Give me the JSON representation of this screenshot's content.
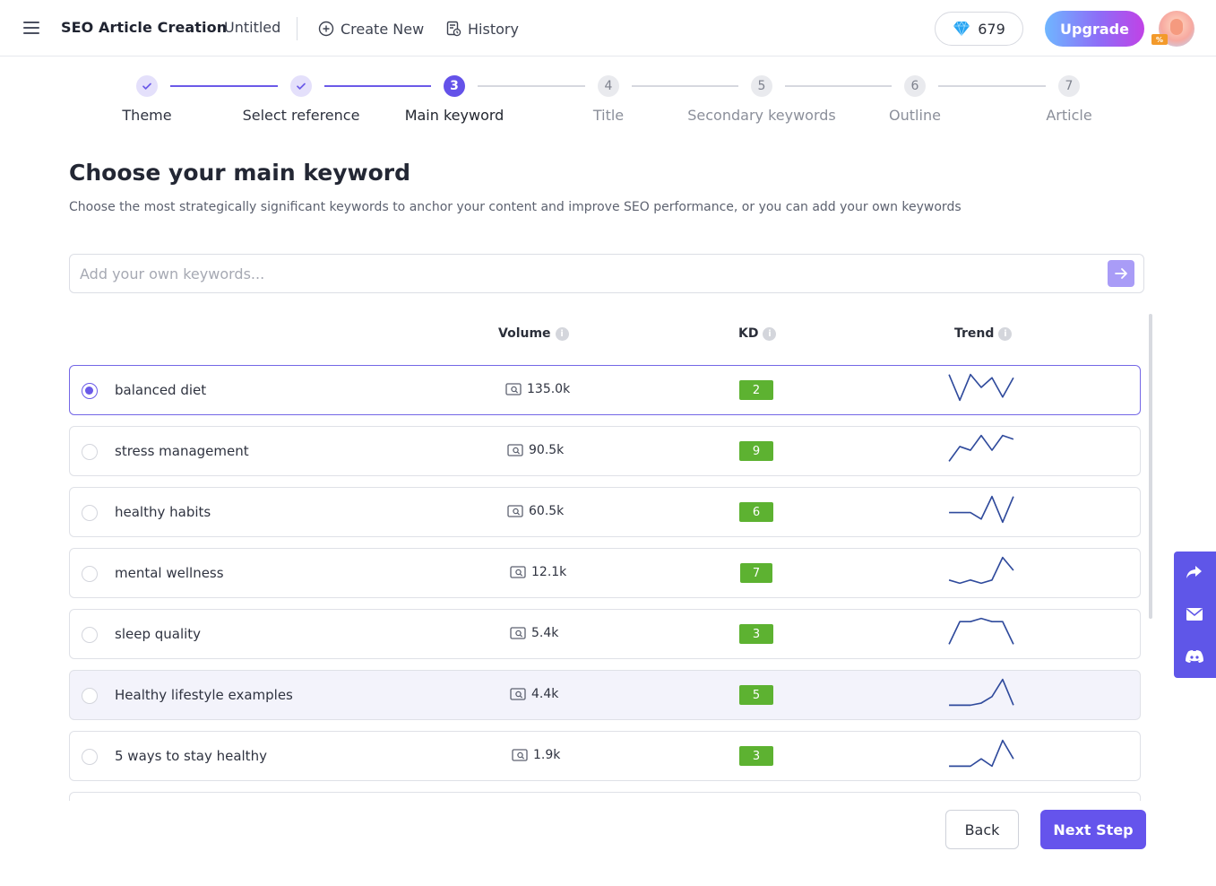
{
  "header": {
    "app_title": "SEO Article Creation",
    "doc_name": "Untitled",
    "create_new_label": "Create New",
    "history_label": "History",
    "credits": "679",
    "upgrade_label": "Upgrade",
    "avatar_badge": "%"
  },
  "stepper": {
    "steps": [
      {
        "number": "1",
        "label": "Theme",
        "state": "done"
      },
      {
        "number": "2",
        "label": "Select reference",
        "state": "done"
      },
      {
        "number": "3",
        "label": "Main keyword",
        "state": "active"
      },
      {
        "number": "4",
        "label": "Title",
        "state": "todo"
      },
      {
        "number": "5",
        "label": "Secondary keywords",
        "state": "todo"
      },
      {
        "number": "6",
        "label": "Outline",
        "state": "todo"
      },
      {
        "number": "7",
        "label": "Article",
        "state": "todo"
      }
    ]
  },
  "main": {
    "title": "Choose your main keyword",
    "subtitle": "Choose the most strategically significant keywords to anchor your content and improve SEO performance, or you can add your own keywords",
    "input_placeholder": "Add your own keywords...",
    "columns": {
      "volume": "Volume",
      "kd": "KD",
      "trend": "Trend",
      "info": "i"
    }
  },
  "keywords": [
    {
      "keyword": "balanced diet",
      "volume": "135.0k",
      "kd": "2",
      "selected": true,
      "trend": [
        10,
        2,
        10,
        6,
        9,
        3,
        9
      ]
    },
    {
      "keyword": "stress management",
      "volume": "90.5k",
      "kd": "9",
      "selected": false,
      "trend": [
        2,
        6,
        5,
        9,
        5,
        9,
        8
      ]
    },
    {
      "keyword": "healthy habits",
      "volume": "60.5k",
      "kd": "6",
      "selected": false,
      "trend": [
        5,
        5,
        5,
        3,
        10,
        2,
        10
      ]
    },
    {
      "keyword": "mental wellness",
      "volume": "12.1k",
      "kd": "7",
      "selected": false,
      "trend": [
        3,
        2,
        3,
        2,
        3,
        10,
        6
      ]
    },
    {
      "keyword": "sleep quality",
      "volume": "5.4k",
      "kd": "3",
      "selected": false,
      "trend": [
        1,
        8,
        8,
        9,
        8,
        8,
        1
      ]
    },
    {
      "keyword": "Healthy lifestyle examples",
      "volume": "4.4k",
      "kd": "5",
      "selected": false,
      "trend": [
        2,
        2,
        2,
        3,
        6,
        14,
        2
      ]
    },
    {
      "keyword": "5 ways to stay healthy",
      "volume": "1.9k",
      "kd": "3",
      "selected": false,
      "trend": [
        2,
        2,
        2,
        4,
        2,
        9,
        4
      ]
    },
    {
      "keyword": "",
      "volume": "",
      "kd": "",
      "selected": false,
      "trend": []
    }
  ],
  "footer": {
    "back_label": "Back",
    "next_label": "Next Step"
  },
  "colors": {
    "accent": "#6554ec",
    "kd_green": "#5db231",
    "trend_line": "#2f4a9c",
    "side_float": "#5f56e8"
  },
  "icons": [
    "menu-icon",
    "plus-circle-icon",
    "history-icon",
    "diamond-icon",
    "arrow-right-icon",
    "check-icon",
    "info-icon",
    "search-volume-icon",
    "share-icon",
    "mail-icon",
    "discord-icon"
  ]
}
